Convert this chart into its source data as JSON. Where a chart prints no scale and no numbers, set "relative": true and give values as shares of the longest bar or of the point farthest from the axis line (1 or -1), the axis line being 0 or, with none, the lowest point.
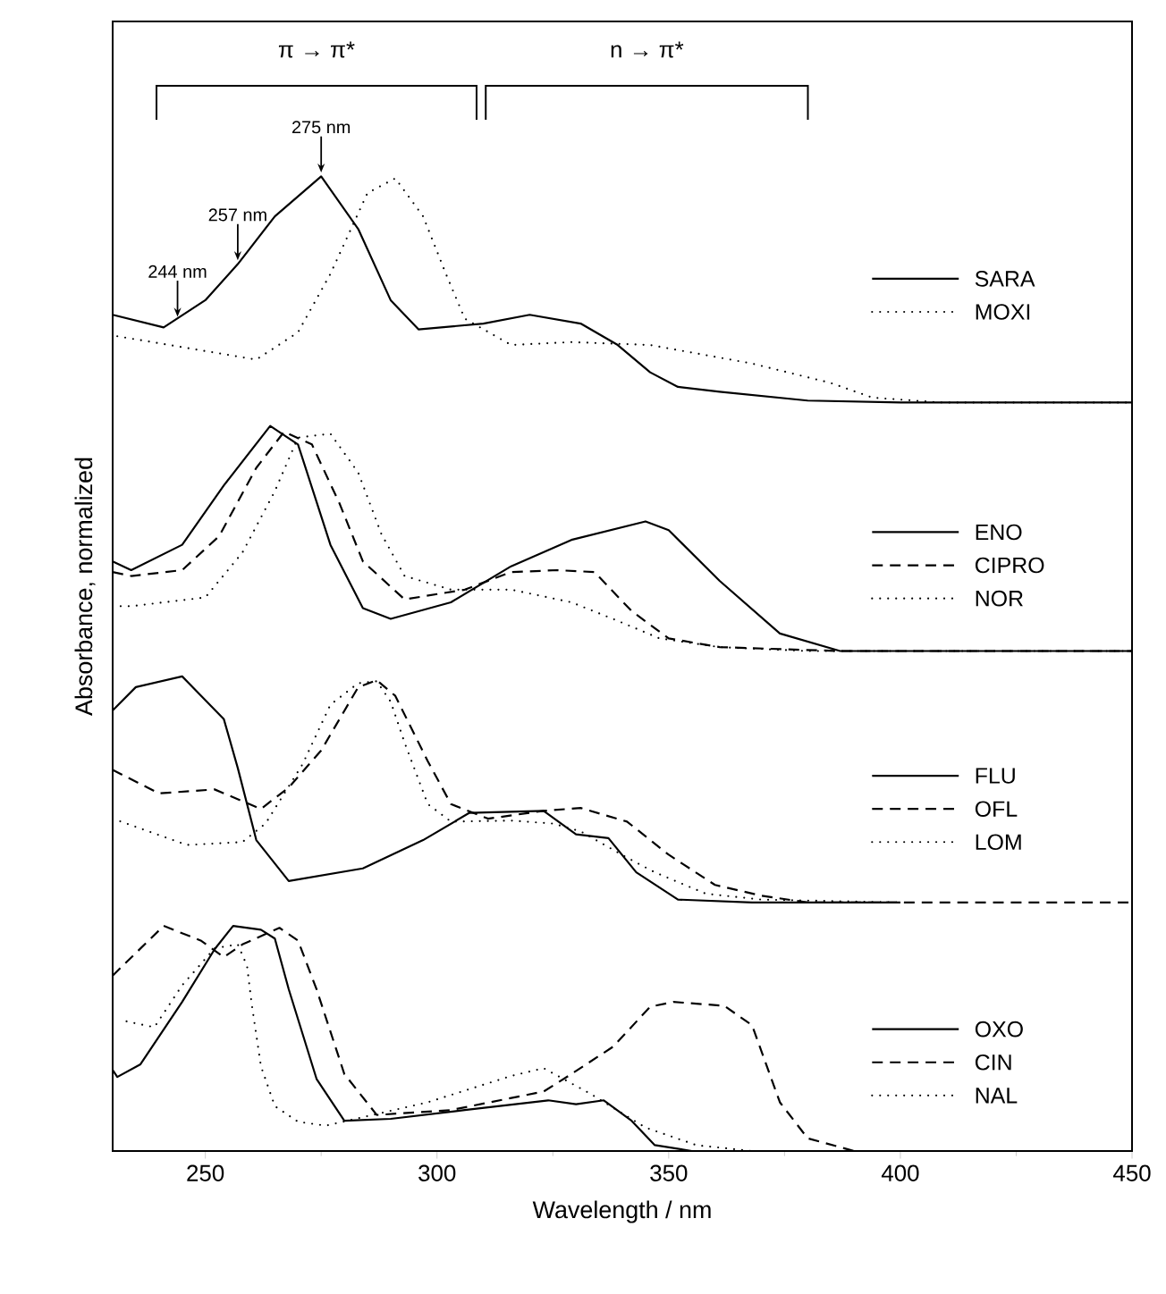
{
  "chart_data": {
    "type": "line",
    "relative": true,
    "xlabel": "Wavelength / nm",
    "ylabel": "Absorbance, normalized",
    "xlim": [
      230,
      450
    ],
    "xticks": [
      250,
      300,
      350,
      400,
      450
    ],
    "tick_labels": "x",
    "legend": "right",
    "annotations": [
      "π → π*",
      "n → π*",
      {
        "text": "244 nm",
        "x": 244,
        "y": 0.852
      },
      {
        "text": "257 nm",
        "x": 257,
        "y": 0.91
      },
      {
        "text": "275 nm",
        "x": 275,
        "y": 1.0
      }
    ],
    "series": [
      {
        "name": "SARA",
        "color": "#000000",
        "line_style": "solid",
        "x": [
          230,
          241,
          250,
          257,
          265,
          275,
          283,
          290,
          296,
          310,
          320,
          331,
          339,
          346,
          352,
          361,
          380,
          400,
          450
        ],
        "values": [
          0.858,
          0.845,
          0.873,
          0.91,
          0.959,
          1.0,
          0.946,
          0.873,
          0.843,
          0.849,
          0.858,
          0.849,
          0.827,
          0.799,
          0.784,
          0.779,
          0.77,
          0.768,
          0.768
        ]
      },
      {
        "name": "MOXI",
        "color": "#000000",
        "line_style": "dotted",
        "x": [
          231,
          261,
          270,
          277,
          285,
          291,
          297,
          302,
          306,
          316,
          329,
          346,
          368,
          385,
          394,
          409,
          450
        ],
        "values": [
          0.836,
          0.812,
          0.84,
          0.9,
          0.983,
          0.998,
          0.959,
          0.899,
          0.854,
          0.827,
          0.83,
          0.827,
          0.808,
          0.788,
          0.773,
          0.768,
          0.768
        ]
      },
      {
        "name": "ENO",
        "color": "#000000",
        "line_style": "solid",
        "x": [
          230,
          234,
          245,
          254,
          264,
          270,
          277,
          284,
          290,
          303,
          316,
          329,
          345,
          350,
          361,
          374,
          387,
          450
        ],
        "values": [
          0.605,
          0.596,
          0.622,
          0.683,
          0.744,
          0.725,
          0.622,
          0.557,
          0.546,
          0.563,
          0.6,
          0.627,
          0.646,
          0.637,
          0.585,
          0.531,
          0.513,
          0.513
        ]
      },
      {
        "name": "CIPRO",
        "color": "#000000",
        "line_style": "dashed",
        "x": [
          230,
          234,
          245,
          253,
          261,
          267,
          273,
          279,
          284,
          293,
          306,
          316,
          326,
          334,
          342,
          350,
          361,
          387,
          450
        ],
        "values": [
          0.594,
          0.59,
          0.596,
          0.631,
          0.701,
          0.738,
          0.725,
          0.664,
          0.605,
          0.566,
          0.576,
          0.594,
          0.596,
          0.594,
          0.554,
          0.526,
          0.517,
          0.513,
          0.513
        ]
      },
      {
        "name": "NOR",
        "color": "#000000",
        "line_style": "dotted",
        "x": [
          230,
          234,
          250,
          258,
          265,
          270,
          277,
          283,
          288,
          293,
          303,
          316,
          329,
          339,
          348,
          361,
          380,
          450
        ],
        "values": [
          0.559,
          0.559,
          0.568,
          0.614,
          0.677,
          0.732,
          0.736,
          0.696,
          0.633,
          0.59,
          0.576,
          0.576,
          0.563,
          0.544,
          0.526,
          0.517,
          0.513,
          0.513
        ]
      },
      {
        "name": "FLU",
        "color": "#000000",
        "line_style": "solid",
        "x": [
          230,
          235,
          245,
          254,
          257,
          261,
          268,
          284,
          297,
          307,
          323,
          330,
          337,
          343,
          352,
          368,
          400
        ],
        "values": [
          0.452,
          0.476,
          0.487,
          0.443,
          0.393,
          0.319,
          0.277,
          0.29,
          0.319,
          0.347,
          0.349,
          0.325,
          0.321,
          0.286,
          0.258,
          0.255,
          0.255
        ]
      },
      {
        "name": "OFL",
        "color": "#000000",
        "line_style": "dashed",
        "x": [
          230,
          240,
          252,
          262,
          268,
          275,
          283,
          287,
          291,
          298,
          303,
          311,
          323,
          331,
          341,
          350,
          360,
          370,
          380,
          450
        ],
        "values": [
          0.391,
          0.367,
          0.371,
          0.351,
          0.373,
          0.411,
          0.476,
          0.483,
          0.467,
          0.4,
          0.356,
          0.341,
          0.349,
          0.352,
          0.338,
          0.304,
          0.273,
          0.262,
          0.255,
          0.255
        ]
      },
      {
        "name": "LOM",
        "color": "#000000",
        "line_style": "dotted",
        "x": [
          230,
          246,
          258,
          263,
          271,
          277,
          283,
          287,
          290,
          293,
          298,
          303,
          316,
          325,
          331,
          341,
          347,
          358,
          370,
          400
        ],
        "values": [
          0.341,
          0.314,
          0.317,
          0.336,
          0.397,
          0.458,
          0.48,
          0.482,
          0.461,
          0.419,
          0.356,
          0.338,
          0.339,
          0.336,
          0.328,
          0.301,
          0.286,
          0.264,
          0.258,
          0.255
        ]
      },
      {
        "name": "OXO",
        "color": "#000000",
        "line_style": "solid",
        "x": [
          230,
          231,
          236,
          245,
          252,
          256,
          262,
          265,
          268,
          274,
          280,
          290,
          306,
          324,
          330,
          336,
          342,
          347,
          355,
          450
        ],
        "values": [
          0.083,
          0.076,
          0.089,
          0.153,
          0.207,
          0.231,
          0.227,
          0.218,
          0.166,
          0.074,
          0.031,
          0.033,
          0.042,
          0.052,
          0.048,
          0.052,
          0.031,
          0.006,
          0,
          0
        ]
      },
      {
        "name": "CIN",
        "color": "#000000",
        "line_style": "dashed",
        "x": [
          230,
          241,
          249,
          254,
          258,
          266,
          270,
          274,
          280,
          287,
          303,
          323,
          329,
          338,
          346,
          351,
          362,
          368,
          374,
          380,
          390,
          450
        ],
        "values": [
          0.18,
          0.231,
          0.216,
          0.199,
          0.212,
          0.229,
          0.216,
          0.166,
          0.079,
          0.037,
          0.042,
          0.061,
          0.079,
          0.107,
          0.148,
          0.153,
          0.149,
          0.129,
          0.05,
          0.013,
          0,
          0
        ]
      },
      {
        "name": "NAL",
        "color": "#000000",
        "line_style": "dotted",
        "x": [
          233,
          239,
          245,
          252,
          257,
          259,
          260,
          262,
          265,
          270,
          276,
          298,
          316,
          323,
          333,
          345,
          356,
          368,
          400
        ],
        "values": [
          0.133,
          0.127,
          0.17,
          0.208,
          0.212,
          0.19,
          0.151,
          0.087,
          0.046,
          0.03,
          0.026,
          0.05,
          0.077,
          0.085,
          0.059,
          0.024,
          0.006,
          0,
          0
        ]
      }
    ]
  }
}
